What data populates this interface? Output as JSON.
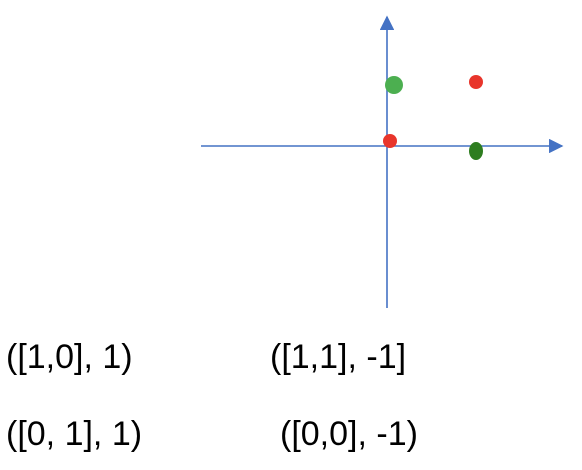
{
  "colors": {
    "axis": "#4472C4",
    "red_point": "#E8352B",
    "light_green_point": "#4CAF50",
    "dark_green_point": "#2E7D1F"
  },
  "points": [
    {
      "x": 0,
      "y": 1,
      "color": "light_green",
      "shape": "large-circle"
    },
    {
      "x": 1,
      "y": 1,
      "color": "red",
      "shape": "circle"
    },
    {
      "x": 0,
      "y": 0,
      "color": "red",
      "shape": "circle"
    },
    {
      "x": 1,
      "y": 0,
      "color": "dark_green",
      "shape": "ellipse"
    }
  ],
  "labels": [
    {
      "text": "([1,0], 1)"
    },
    {
      "text": "([1,1], -1]"
    },
    {
      "text": "([0, 1], 1)"
    },
    {
      "text": "([0,0], -1)"
    }
  ]
}
